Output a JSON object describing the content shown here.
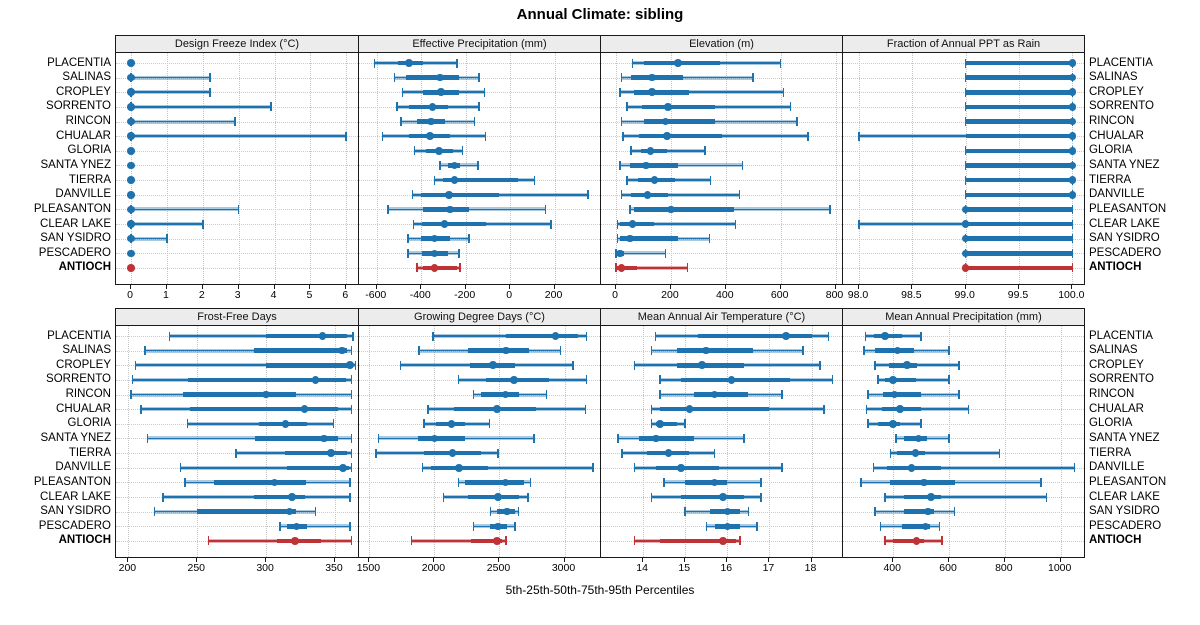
{
  "chart_data": {
    "type": "dot-whisker-percentile-trellis",
    "title": "Annual Climate: sibling",
    "caption": "5th-25th-50th-75th-95th Percentiles",
    "percentiles": [
      5,
      25,
      50,
      75,
      95
    ],
    "categories": [
      "PLACENTIA",
      "SALINAS",
      "CROPLEY",
      "SORRENTO",
      "RINCON",
      "CHUALAR",
      "GLORIA",
      "SANTA YNEZ",
      "TIERRA",
      "DANVILLE",
      "PLEASANTON",
      "CLEAR LAKE",
      "SAN YSIDRO",
      "PESCADERO",
      "ANTIOCH"
    ],
    "highlight_category": "ANTIOCH",
    "layout": {
      "rows": 2,
      "cols": 4,
      "grid": "dotted",
      "legend": "none",
      "category_labels": "both-sides"
    },
    "colors": {
      "series": "#1e73ae",
      "series_light": "rgba(30,115,174,0.38)",
      "highlight": "#bf3236",
      "highlight_light": "rgba(191,50,54,0.38)",
      "grid": "#c6c6c6",
      "panel_border": "#1a1a1a",
      "header_bg": "#ececec"
    },
    "panels": [
      {
        "title": "Design Freeze Index (°C)",
        "xlim": [
          -0.42,
          6.3
        ],
        "tick_values": [
          0,
          1,
          2,
          3,
          4,
          5,
          6
        ],
        "tick_labels": [
          "0",
          "1",
          "2",
          "3",
          "4",
          "5",
          "6"
        ],
        "series": [
          [
            0,
            0,
            0,
            0,
            0
          ],
          [
            0,
            0,
            0,
            0,
            2.2
          ],
          [
            0,
            0,
            0,
            0,
            2.2
          ],
          [
            0,
            0,
            0,
            0,
            3.9
          ],
          [
            0,
            0,
            0,
            0,
            2.9
          ],
          [
            0,
            0,
            0,
            0,
            6.0
          ],
          [
            0,
            0,
            0,
            0,
            0
          ],
          [
            0,
            0,
            0,
            0,
            0
          ],
          [
            0,
            0,
            0,
            0,
            0
          ],
          [
            0,
            0,
            0,
            0,
            0
          ],
          [
            0,
            0,
            0,
            0,
            3.0
          ],
          [
            0,
            0,
            0,
            0,
            2.0
          ],
          [
            0,
            0,
            0,
            0,
            1.0
          ],
          [
            0,
            0,
            0,
            0,
            0
          ],
          [
            0,
            0,
            0,
            0,
            0
          ]
        ]
      },
      {
        "title": "Effective Precipitation (mm)",
        "xlim": [
          -680,
          400
        ],
        "tick_values": [
          -600,
          -400,
          -200,
          0,
          200
        ],
        "tick_labels": [
          "-600",
          "-400",
          "-200",
          "0",
          "200"
        ],
        "series": [
          [
            -610,
            -505,
            -455,
            -390,
            -240
          ],
          [
            -520,
            -470,
            -315,
            -230,
            -140
          ],
          [
            -485,
            -390,
            -310,
            -230,
            -115
          ],
          [
            -510,
            -455,
            -350,
            -280,
            -140
          ],
          [
            -490,
            -420,
            -355,
            -295,
            -160
          ],
          [
            -575,
            -455,
            -360,
            -270,
            -110
          ],
          [
            -430,
            -380,
            -320,
            -255,
            -215
          ],
          [
            -315,
            -280,
            -250,
            -225,
            -145
          ],
          [
            -340,
            -300,
            -250,
            35,
            110
          ],
          [
            -440,
            -400,
            -275,
            -50,
            350
          ],
          [
            -550,
            -390,
            -270,
            -185,
            160
          ],
          [
            -435,
            -395,
            -295,
            -110,
            185
          ],
          [
            -460,
            -400,
            -340,
            -270,
            -185
          ],
          [
            -460,
            -395,
            -340,
            -280,
            -230
          ],
          [
            -420,
            -390,
            -340,
            -240,
            -225
          ]
        ]
      },
      {
        "title": "Elevation (m)",
        "xlim": [
          -55,
          820
        ],
        "tick_values": [
          0,
          200,
          400,
          600,
          800
        ],
        "tick_labels": [
          "0",
          "200",
          "400",
          "600",
          "800"
        ],
        "series": [
          [
            60,
            100,
            225,
            380,
            600
          ],
          [
            20,
            55,
            130,
            245,
            500
          ],
          [
            15,
            65,
            130,
            265,
            610
          ],
          [
            40,
            95,
            190,
            360,
            635
          ],
          [
            20,
            100,
            180,
            360,
            660
          ],
          [
            25,
            85,
            185,
            385,
            700
          ],
          [
            55,
            90,
            125,
            185,
            325
          ],
          [
            15,
            50,
            110,
            225,
            460
          ],
          [
            40,
            80,
            140,
            215,
            345
          ],
          [
            20,
            55,
            115,
            190,
            450
          ],
          [
            50,
            65,
            200,
            430,
            780
          ],
          [
            5,
            15,
            60,
            140,
            435
          ],
          [
            5,
            15,
            50,
            225,
            340
          ],
          [
            0,
            5,
            15,
            30,
            180
          ],
          [
            0,
            5,
            20,
            75,
            260
          ]
        ]
      },
      {
        "title": "Fraction of Annual PPT as Rain",
        "xlim": [
          97.85,
          100.1
        ],
        "tick_values": [
          98.0,
          98.5,
          99.0,
          99.5,
          100.0
        ],
        "tick_labels": [
          "98.0",
          "98.5",
          "99.0",
          "99.5",
          "100.0"
        ],
        "series": [
          [
            99,
            99,
            100,
            100,
            100
          ],
          [
            99,
            99,
            100,
            100,
            100
          ],
          [
            99,
            99,
            100,
            100,
            100
          ],
          [
            99,
            99,
            100,
            100,
            100
          ],
          [
            99,
            99,
            100,
            100,
            100
          ],
          [
            98,
            99,
            100,
            100,
            100
          ],
          [
            99,
            99,
            100,
            100,
            100
          ],
          [
            99,
            99,
            100,
            100,
            100
          ],
          [
            99,
            99,
            100,
            100,
            100
          ],
          [
            99,
            99,
            100,
            100,
            100
          ],
          [
            99,
            99,
            99,
            100,
            100
          ],
          [
            98,
            99,
            99,
            100,
            100
          ],
          [
            99,
            99,
            99,
            100,
            100
          ],
          [
            99,
            99,
            99,
            100,
            100
          ],
          [
            99,
            99,
            99,
            100,
            100
          ]
        ]
      },
      {
        "title": "Frost-Free Days",
        "xlim": [
          191,
          366
        ],
        "tick_values": [
          200,
          250,
          300,
          350
        ],
        "tick_labels": [
          "200",
          "250",
          "300",
          "350"
        ],
        "series": [
          [
            230,
            300,
            341,
            359,
            363
          ],
          [
            212,
            291,
            355,
            359,
            362
          ],
          [
            205,
            300,
            361,
            363,
            365
          ],
          [
            203,
            243,
            336,
            358,
            362
          ],
          [
            202,
            240,
            300,
            322,
            362
          ],
          [
            209,
            245,
            328,
            352,
            362
          ],
          [
            243,
            295,
            314,
            330,
            349
          ],
          [
            214,
            292,
            342,
            352,
            362
          ],
          [
            278,
            314,
            347,
            359,
            362
          ],
          [
            238,
            315,
            356,
            360,
            362
          ],
          [
            241,
            262,
            306,
            329,
            361
          ],
          [
            225,
            291,
            319,
            328,
            361
          ],
          [
            219,
            250,
            317,
            322,
            336
          ],
          [
            310,
            315,
            322,
            330,
            361
          ],
          [
            258,
            308,
            321,
            340,
            362
          ]
        ]
      },
      {
        "title": "Growing Degree Days (°C)",
        "xlim": [
          1420,
          3265
        ],
        "tick_values": [
          1500,
          2000,
          2500,
          3000
        ],
        "tick_labels": [
          "1500",
          "2000",
          "2500",
          "3000"
        ],
        "series": [
          [
            1990,
            2550,
            2930,
            3100,
            3170
          ],
          [
            1880,
            2255,
            2550,
            2730,
            2970
          ],
          [
            1740,
            2270,
            2450,
            2620,
            3065
          ],
          [
            2185,
            2400,
            2610,
            2880,
            3170
          ],
          [
            2300,
            2360,
            2545,
            2650,
            2860
          ],
          [
            1950,
            2150,
            2480,
            2780,
            3160
          ],
          [
            1920,
            2010,
            2130,
            2235,
            2425
          ],
          [
            1570,
            1870,
            2000,
            2235,
            2765
          ],
          [
            1550,
            1920,
            2140,
            2355,
            2490
          ],
          [
            1910,
            1970,
            2190,
            2410,
            3220
          ],
          [
            2185,
            2235,
            2545,
            2690,
            2740
          ],
          [
            2070,
            2260,
            2490,
            2650,
            2720
          ],
          [
            2430,
            2480,
            2560,
            2620,
            2645
          ],
          [
            2300,
            2430,
            2490,
            2555,
            2620
          ],
          [
            1825,
            2280,
            2480,
            2520,
            2550
          ]
        ]
      },
      {
        "title": "Mean Annual Air Temperature (°C)",
        "xlim": [
          13.0,
          18.7
        ],
        "tick_values": [
          14,
          15,
          16,
          17,
          18
        ],
        "tick_labels": [
          "14",
          "15",
          "16",
          "17",
          "18"
        ],
        "series": [
          [
            14.3,
            15.3,
            17.4,
            18.0,
            18.4
          ],
          [
            14.2,
            14.8,
            15.5,
            16.6,
            17.8
          ],
          [
            13.8,
            14.8,
            15.4,
            16.4,
            18.2
          ],
          [
            14.4,
            14.9,
            16.1,
            17.5,
            18.5
          ],
          [
            14.4,
            15.2,
            15.7,
            16.5,
            17.3
          ],
          [
            14.2,
            14.4,
            15.1,
            17.0,
            18.3
          ],
          [
            14.2,
            14.3,
            14.4,
            14.8,
            15.0
          ],
          [
            13.4,
            13.9,
            14.3,
            15.2,
            16.4
          ],
          [
            13.5,
            14.1,
            14.6,
            15.1,
            15.7
          ],
          [
            13.8,
            14.3,
            14.9,
            15.8,
            17.3
          ],
          [
            14.5,
            15.0,
            15.7,
            16.0,
            16.8
          ],
          [
            14.2,
            14.9,
            15.9,
            16.4,
            16.8
          ],
          [
            15.0,
            15.6,
            16.0,
            16.3,
            16.5
          ],
          [
            15.5,
            15.7,
            16.0,
            16.3,
            16.7
          ],
          [
            13.8,
            14.4,
            15.9,
            16.2,
            16.3
          ]
        ]
      },
      {
        "title": "Mean Annual Precipitation (mm)",
        "xlim": [
          220,
          1080
        ],
        "tick_values": [
          400,
          600,
          800,
          1000
        ],
        "tick_labels": [
          "400",
          "600",
          "800",
          "1000"
        ],
        "series": [
          [
            300,
            330,
            370,
            430,
            500
          ],
          [
            295,
            335,
            415,
            475,
            600
          ],
          [
            335,
            385,
            450,
            485,
            635
          ],
          [
            345,
            370,
            400,
            480,
            600
          ],
          [
            310,
            365,
            405,
            500,
            635
          ],
          [
            305,
            360,
            425,
            500,
            670
          ],
          [
            310,
            345,
            400,
            425,
            500
          ],
          [
            410,
            440,
            490,
            520,
            600
          ],
          [
            390,
            415,
            480,
            515,
            780
          ],
          [
            330,
            377,
            465,
            570,
            1050
          ],
          [
            285,
            390,
            510,
            620,
            930
          ],
          [
            370,
            440,
            535,
            570,
            950
          ],
          [
            335,
            440,
            525,
            545,
            620
          ],
          [
            355,
            430,
            515,
            530,
            565
          ],
          [
            370,
            400,
            483,
            510,
            575
          ]
        ]
      }
    ]
  }
}
